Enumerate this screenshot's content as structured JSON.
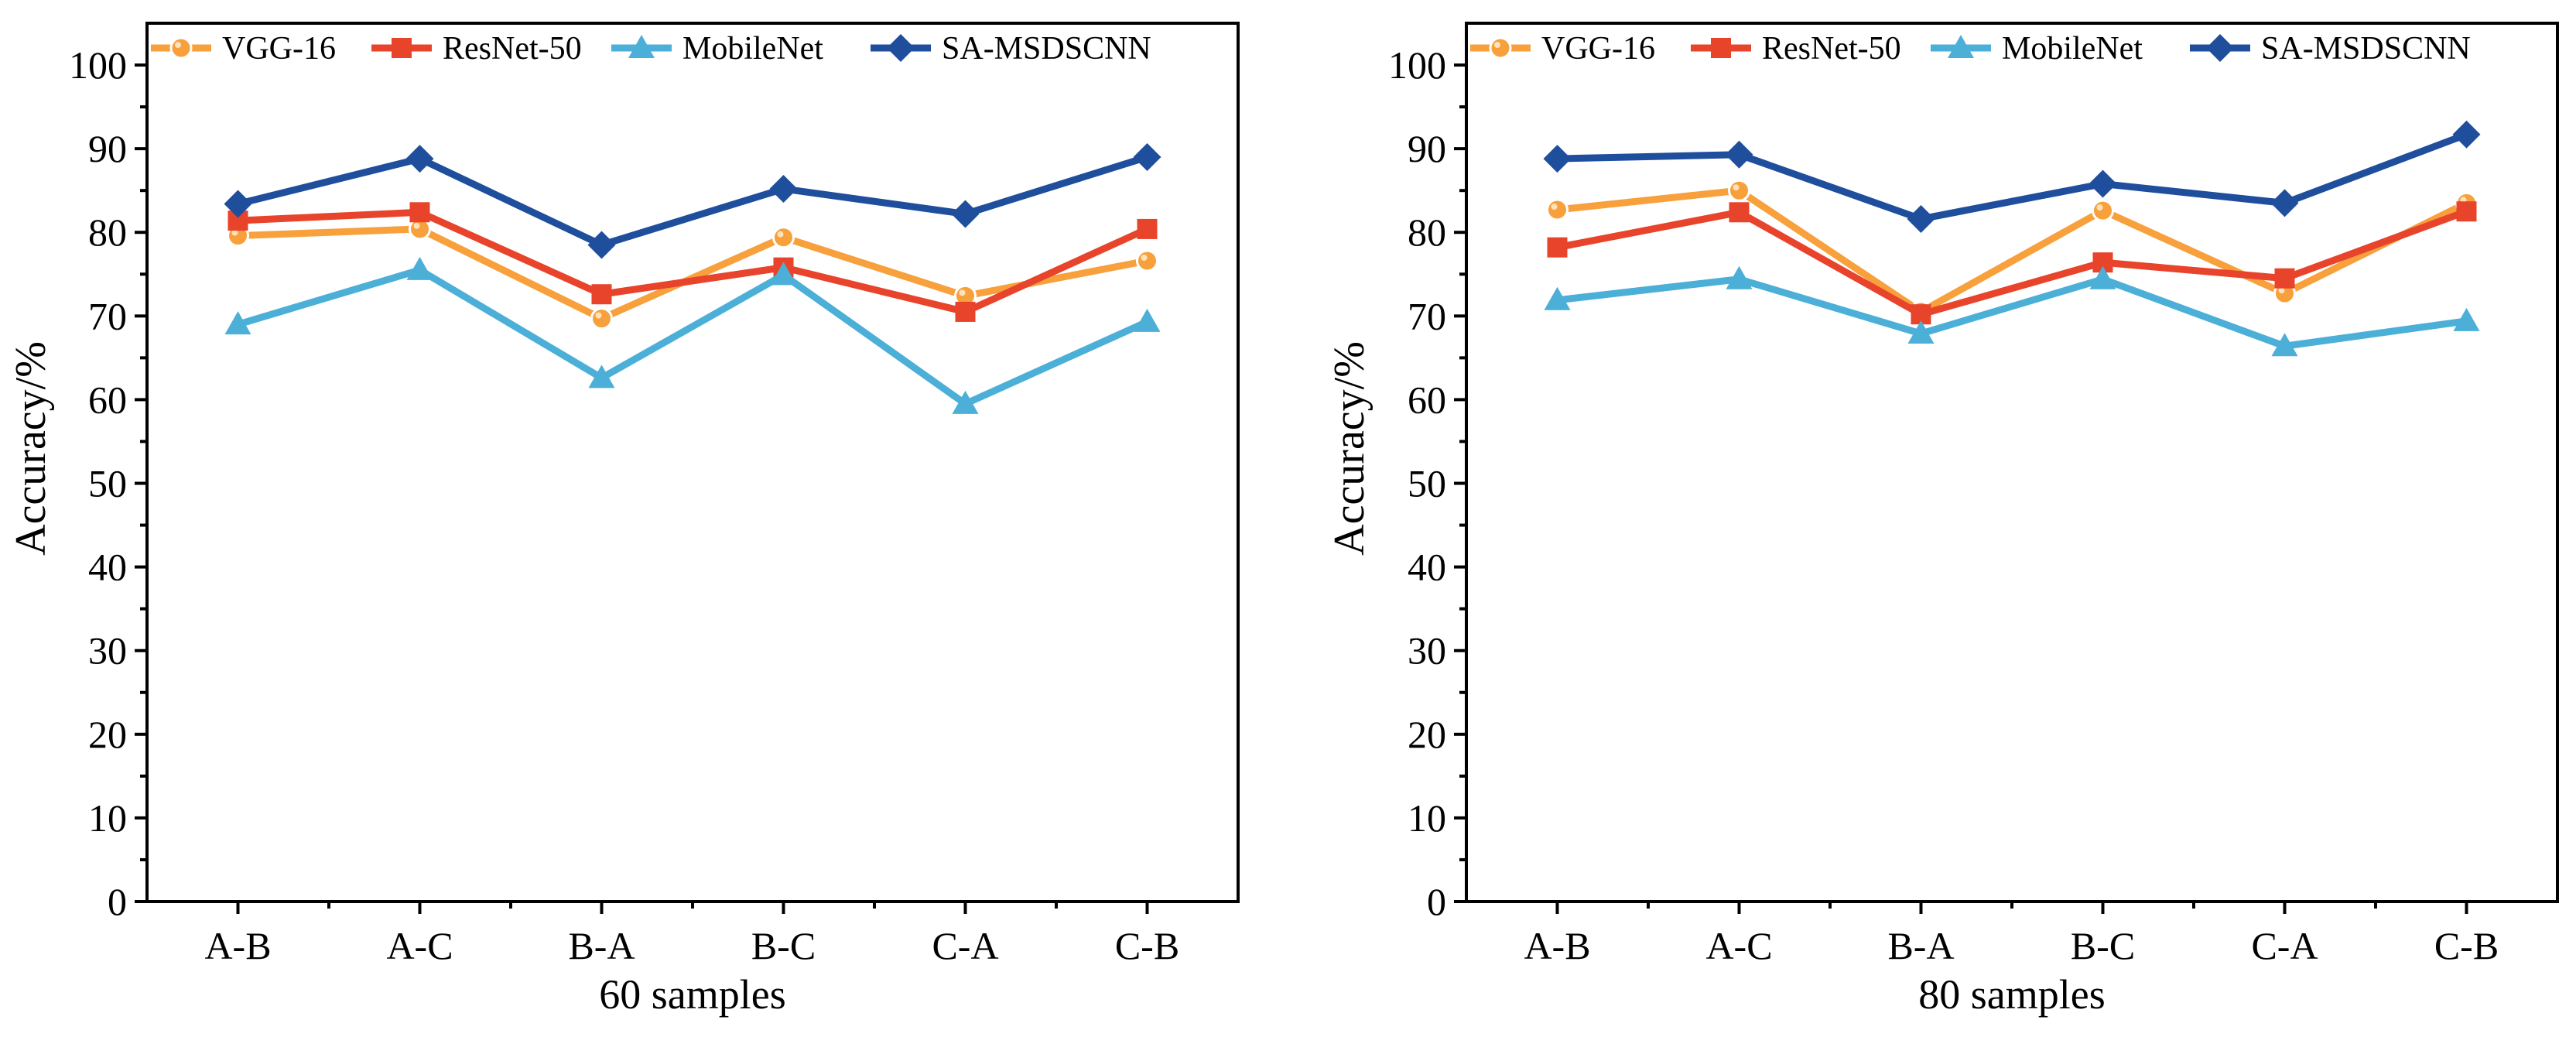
{
  "colors": {
    "VGG-16": "#F7A03C",
    "ResNet-50": "#E8432B",
    "MobileNet": "#4BAFD7",
    "SA-MSDSCNN": "#1F4E9C"
  },
  "markers": {
    "VGG-16": "circle",
    "ResNet-50": "square",
    "MobileNet": "triangle",
    "SA-MSDSCNN": "diamond"
  },
  "chart_data": [
    {
      "type": "line",
      "title": "",
      "xlabel": "60 samples",
      "ylabel": "Accuracy/%",
      "ylim": [
        0,
        105
      ],
      "yticks": [
        0,
        10,
        20,
        30,
        40,
        50,
        60,
        70,
        80,
        90,
        100
      ],
      "categories": [
        "A-B",
        "A-C",
        "B-A",
        "B-C",
        "C-A",
        "C-B"
      ],
      "legend_position": "top",
      "series": [
        {
          "name": "VGG-16",
          "values": [
            79.6,
            80.4,
            69.7,
            79.4,
            72.4,
            76.6
          ]
        },
        {
          "name": "ResNet-50",
          "values": [
            81.4,
            82.4,
            72.6,
            75.8,
            70.5,
            80.4
          ]
        },
        {
          "name": "MobileNet",
          "values": [
            69.0,
            75.5,
            62.6,
            74.9,
            59.5,
            69.3
          ]
        },
        {
          "name": "SA-MSDSCNN",
          "values": [
            83.4,
            88.8,
            78.5,
            85.2,
            82.2,
            89.0
          ]
        }
      ]
    },
    {
      "type": "line",
      "title": "",
      "xlabel": "80 samples",
      "ylabel": "Accuracy/%",
      "ylim": [
        0,
        105
      ],
      "yticks": [
        0,
        10,
        20,
        30,
        40,
        50,
        60,
        70,
        80,
        90,
        100
      ],
      "categories": [
        "A-B",
        "A-C",
        "B-A",
        "B-C",
        "C-A",
        "C-B"
      ],
      "legend_position": "top",
      "series": [
        {
          "name": "VGG-16",
          "values": [
            82.7,
            85.0,
            70.5,
            82.6,
            72.7,
            83.5
          ]
        },
        {
          "name": "ResNet-50",
          "values": [
            78.2,
            82.4,
            70.2,
            76.4,
            74.5,
            82.5
          ]
        },
        {
          "name": "MobileNet",
          "values": [
            71.9,
            74.4,
            67.9,
            74.4,
            66.4,
            69.4
          ]
        },
        {
          "name": "SA-MSDSCNN",
          "values": [
            88.8,
            89.3,
            81.6,
            85.8,
            83.5,
            91.7
          ]
        }
      ]
    }
  ]
}
